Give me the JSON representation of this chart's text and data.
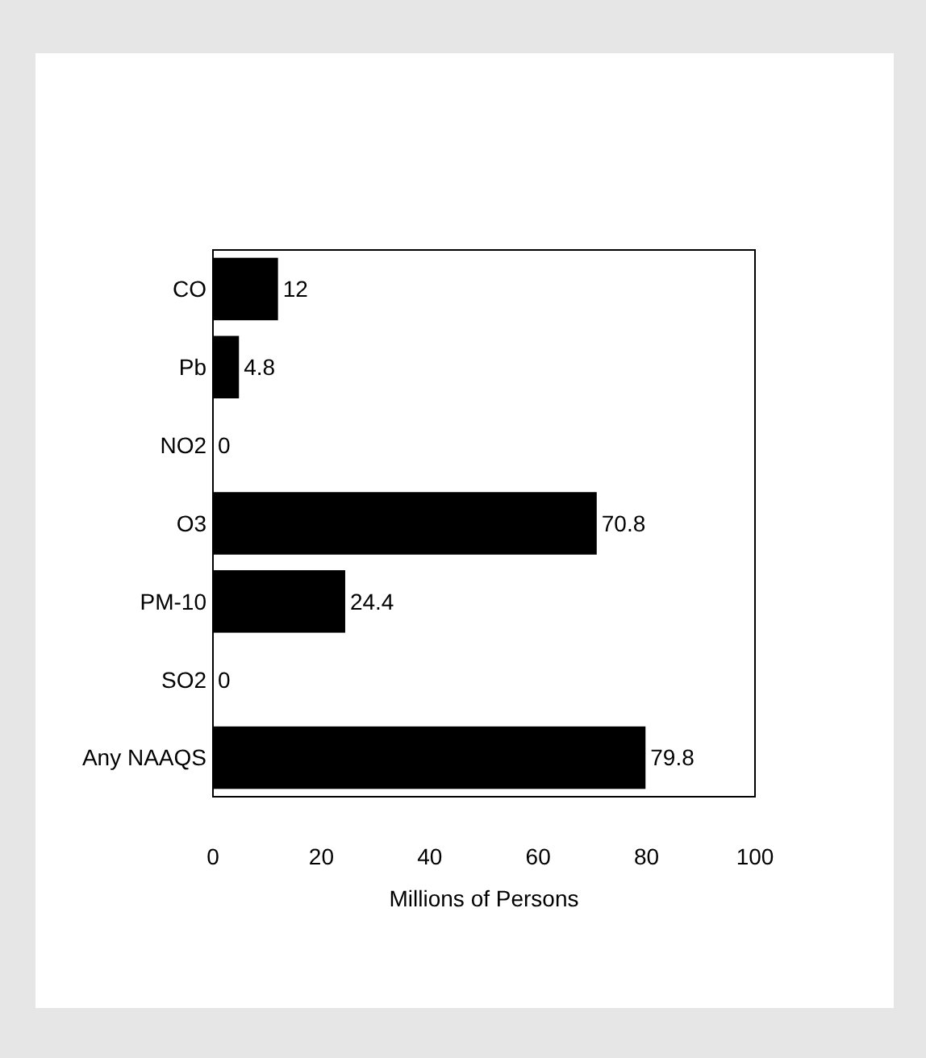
{
  "chart_data": {
    "type": "bar",
    "orientation": "horizontal",
    "xlabel": "Millions of Persons",
    "categories": [
      "CO",
      "Pb",
      "NO2",
      "O3",
      "PM-10",
      "SO2",
      "Any NAAQS"
    ],
    "values": [
      12,
      4.8,
      0,
      70.8,
      24.4,
      0,
      79.8
    ],
    "color": "#000000",
    "xlim": [
      0,
      100
    ],
    "xticks": [
      0,
      20,
      40,
      60,
      80,
      100
    ],
    "data_labels": true,
    "grid": false
  }
}
